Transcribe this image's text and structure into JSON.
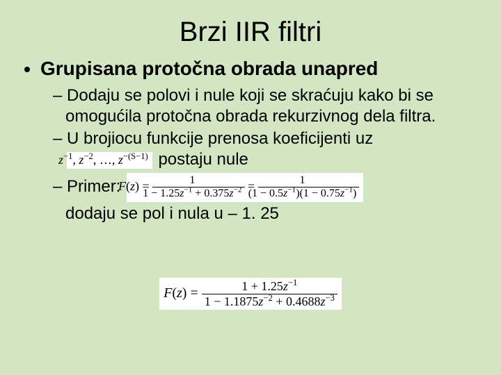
{
  "background_color": "#d3e6c3",
  "text_color": "#000000",
  "math_box_bg": "#ffffff",
  "title": {
    "text": "Brzi IIR filtri",
    "fontsize": 40
  },
  "lvl1": {
    "text": "Grupisana protočna obrada unapred",
    "fontsize": 28,
    "fontweight": "bold"
  },
  "lvl2": {
    "fontsize": 24,
    "items": {
      "a": "Dodaju se polovi i nule koji se skraćuju kako bi se omogućila protočna obrada rekurzivnog dela filtra.",
      "b_pre": "U brojiocu funkcije prenosa koeficijenti uz",
      "b_post": "  postaju nule",
      "c_pre": "Primer: ",
      "c_line2": "dodaju se pol i nula u – 1. 25"
    }
  },
  "math": {
    "seq": "z⁻¹, z⁻², …, z⁻(S−1)",
    "primer_lhs": "F(z) =",
    "primer_frac1": {
      "num": "1",
      "den": "1 − 1.25z⁻¹ + 0.375z⁻²"
    },
    "primer_eq": " = ",
    "primer_frac2": {
      "num": "1",
      "den": "(1 − 0.5z⁻¹)(1 − 0.75z⁻¹)"
    },
    "final_lhs": "F(z) = ",
    "final_frac": {
      "num": "1 + 1.25z⁻¹",
      "den": "1 − 1.1875z⁻² + 0.4688z⁻³"
    }
  }
}
